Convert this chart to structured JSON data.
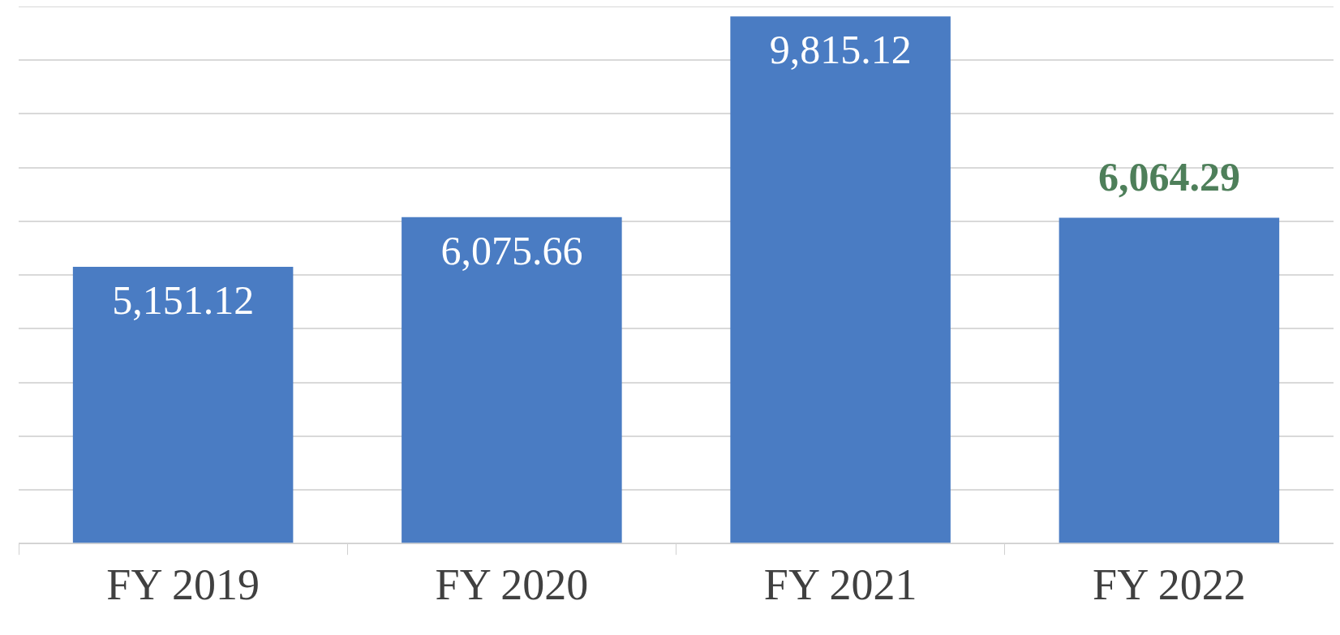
{
  "chart_data": {
    "type": "bar",
    "categories": [
      "FY 2019",
      "FY 2020",
      "FY 2021",
      "FY 2022"
    ],
    "values": [
      5151.12,
      6075.66,
      9815.12,
      6064.29
    ],
    "value_labels": [
      "5,151.12",
      "6,075.66",
      "9,815.12",
      "6,064.29"
    ],
    "color": "#4a7cc3",
    "ylim": [
      0,
      10000
    ],
    "yticks": [
      {
        "value": 0,
        "label": null
      },
      {
        "value": 1000,
        "label": null
      },
      {
        "value": 2000,
        "label": null
      },
      {
        "value": 3000,
        "label": null
      },
      {
        "value": 4000,
        "label": null
      },
      {
        "value": 5000,
        "label": null
      },
      {
        "value": 6000,
        "label": null
      },
      {
        "value": 7000,
        "label": null
      },
      {
        "value": 8000,
        "label": null
      },
      {
        "value": 9000,
        "label": null
      },
      {
        "value": 10000,
        "label": null
      }
    ],
    "grid": "y",
    "legend": false,
    "tick_labels": "x"
  }
}
